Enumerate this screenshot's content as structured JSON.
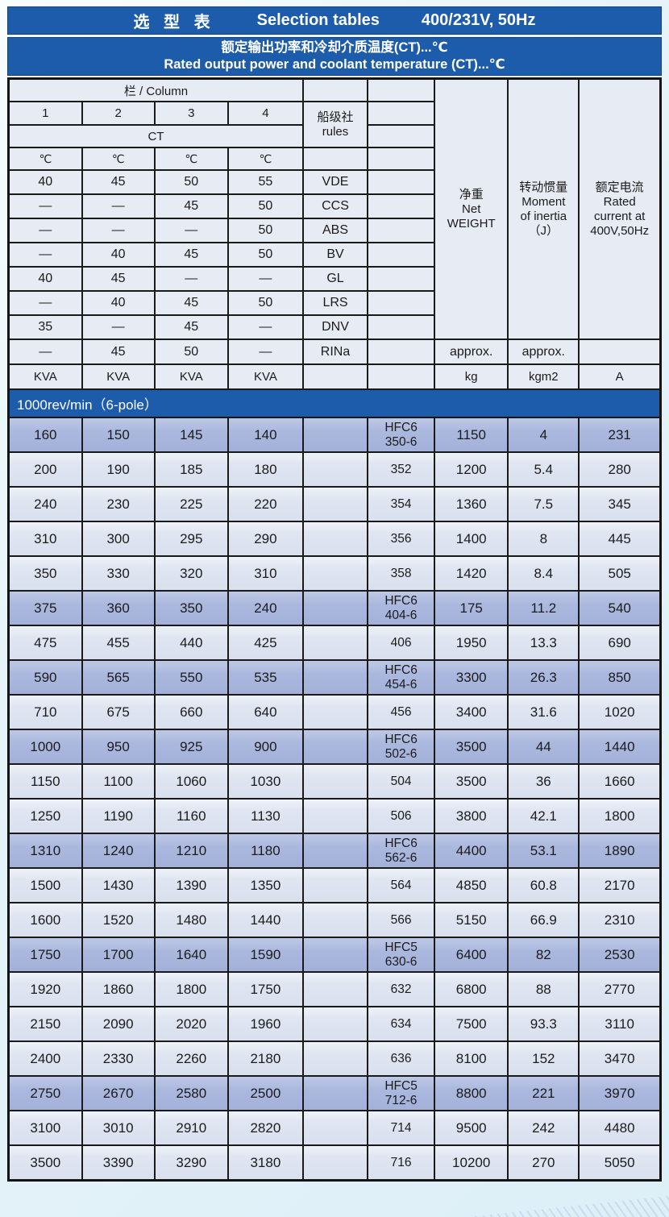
{
  "colors": {
    "accent_blue": "#1d5bab",
    "row_highlight": "#a9b6dc",
    "row_normal": "#dde3ef",
    "border": "#1a1a1a"
  },
  "title_bar": {
    "cn": "选 型 表",
    "en": "Selection tables",
    "spec": "400/231V, 50Hz"
  },
  "subtitle": {
    "line1": "额定输出功率和冷却介质温度(CT)...℃",
    "line2": "Rated output power and coolant temperature (CT)...℃"
  },
  "header": {
    "column_label": "栏 / Column",
    "col_numbers": [
      "1",
      "2",
      "3",
      "4"
    ],
    "ct_label": "CT",
    "deg": [
      "℃",
      "℃",
      "℃",
      "℃"
    ],
    "rules_label": "船级社\nrules",
    "net_weight": "净重\nNet\nWEIGHT",
    "moment_of_inertia": "转动惯量\nMoment\nof inertia\n（J）",
    "rated_current": "额定电流\nRated\ncurrent at\n400V,50Hz",
    "temp_rows": [
      {
        "t": [
          "40",
          "45",
          "50",
          "55"
        ],
        "rule": "VDE"
      },
      {
        "t": [
          "—",
          "—",
          "45",
          "50"
        ],
        "rule": "CCS"
      },
      {
        "t": [
          "—",
          "—",
          "—",
          "50"
        ],
        "rule": "ABS"
      },
      {
        "t": [
          "—",
          "40",
          "45",
          "50"
        ],
        "rule": "BV"
      },
      {
        "t": [
          "40",
          "45",
          "—",
          "—"
        ],
        "rule": "GL"
      },
      {
        "t": [
          "—",
          "40",
          "45",
          "50"
        ],
        "rule": "LRS"
      },
      {
        "t": [
          "35",
          "—",
          "45",
          "—"
        ],
        "rule": "DNV"
      }
    ],
    "rina_row": {
      "t": [
        "—",
        "45",
        "50",
        "—"
      ],
      "rule": "RINa",
      "approx_kg": "approx.",
      "approx_kgm2": "approx."
    },
    "units_row": {
      "kva": [
        "KVA",
        "KVA",
        "KVA",
        "KVA"
      ],
      "kg": "kg",
      "kgm2": "kgm2",
      "a": "A"
    }
  },
  "section": {
    "label": "1000rev/min（6-pole）"
  },
  "rows": [
    {
      "hl": true,
      "c": [
        "160",
        "150",
        "145",
        "140",
        "",
        "HFC6\n350-6",
        "1150",
        "4",
        "231"
      ]
    },
    {
      "hl": false,
      "c": [
        "200",
        "190",
        "185",
        "180",
        "",
        "352",
        "1200",
        "5.4",
        "280"
      ]
    },
    {
      "hl": false,
      "c": [
        "240",
        "230",
        "225",
        "220",
        "",
        "354",
        "1360",
        "7.5",
        "345"
      ]
    },
    {
      "hl": false,
      "c": [
        "310",
        "300",
        "295",
        "290",
        "",
        "356",
        "1400",
        "8",
        "445"
      ]
    },
    {
      "hl": false,
      "c": [
        "350",
        "330",
        "320",
        "310",
        "",
        "358",
        "1420",
        "8.4",
        "505"
      ]
    },
    {
      "hl": true,
      "c": [
        "375",
        "360",
        "350",
        "240",
        "",
        "HFC6\n404-6",
        "175",
        "11.2",
        "540"
      ]
    },
    {
      "hl": false,
      "c": [
        "475",
        "455",
        "440",
        "425",
        "",
        "406",
        "1950",
        "13.3",
        "690"
      ]
    },
    {
      "hl": true,
      "c": [
        "590",
        "565",
        "550",
        "535",
        "",
        "HFC6\n454-6",
        "3300",
        "26.3",
        "850"
      ]
    },
    {
      "hl": false,
      "c": [
        "710",
        "675",
        "660",
        "640",
        "",
        "456",
        "3400",
        "31.6",
        "1020"
      ]
    },
    {
      "hl": true,
      "c": [
        "1000",
        "950",
        "925",
        "900",
        "",
        "HFC6\n502-6",
        "3500",
        "44",
        "1440"
      ]
    },
    {
      "hl": false,
      "c": [
        "1150",
        "1100",
        "1060",
        "1030",
        "",
        "504",
        "3500",
        "36",
        "1660"
      ]
    },
    {
      "hl": false,
      "c": [
        "1250",
        "1190",
        "1160",
        "1130",
        "",
        "506",
        "3800",
        "42.1",
        "1800"
      ]
    },
    {
      "hl": true,
      "c": [
        "1310",
        "1240",
        "1210",
        "1180",
        "",
        "HFC6\n562-6",
        "4400",
        "53.1",
        "1890"
      ]
    },
    {
      "hl": false,
      "c": [
        "1500",
        "1430",
        "1390",
        "1350",
        "",
        "564",
        "4850",
        "60.8",
        "2170"
      ]
    },
    {
      "hl": false,
      "c": [
        "1600",
        "1520",
        "1480",
        "1440",
        "",
        "566",
        "5150",
        "66.9",
        "2310"
      ]
    },
    {
      "hl": true,
      "c": [
        "1750",
        "1700",
        "1640",
        "1590",
        "",
        "HFC5\n630-6",
        "6400",
        "82",
        "2530"
      ]
    },
    {
      "hl": false,
      "c": [
        "1920",
        "1860",
        "1800",
        "1750",
        "",
        "632",
        "6800",
        "88",
        "2770"
      ]
    },
    {
      "hl": false,
      "c": [
        "2150",
        "2090",
        "2020",
        "1960",
        "",
        "634",
        "7500",
        "93.3",
        "3110"
      ]
    },
    {
      "hl": false,
      "c": [
        "2400",
        "2330",
        "2260",
        "2180",
        "",
        "636",
        "8100",
        "152",
        "3470"
      ]
    },
    {
      "hl": true,
      "c": [
        "2750",
        "2670",
        "2580",
        "2500",
        "",
        "HFC5\n712-6",
        "8800",
        "221",
        "3970"
      ]
    },
    {
      "hl": false,
      "c": [
        "3100",
        "3010",
        "2910",
        "2820",
        "",
        "714",
        "9500",
        "242",
        "4480"
      ]
    },
    {
      "hl": false,
      "c": [
        "3500",
        "3390",
        "3290",
        "3180",
        "",
        "716",
        "10200",
        "270",
        "5050"
      ]
    }
  ]
}
